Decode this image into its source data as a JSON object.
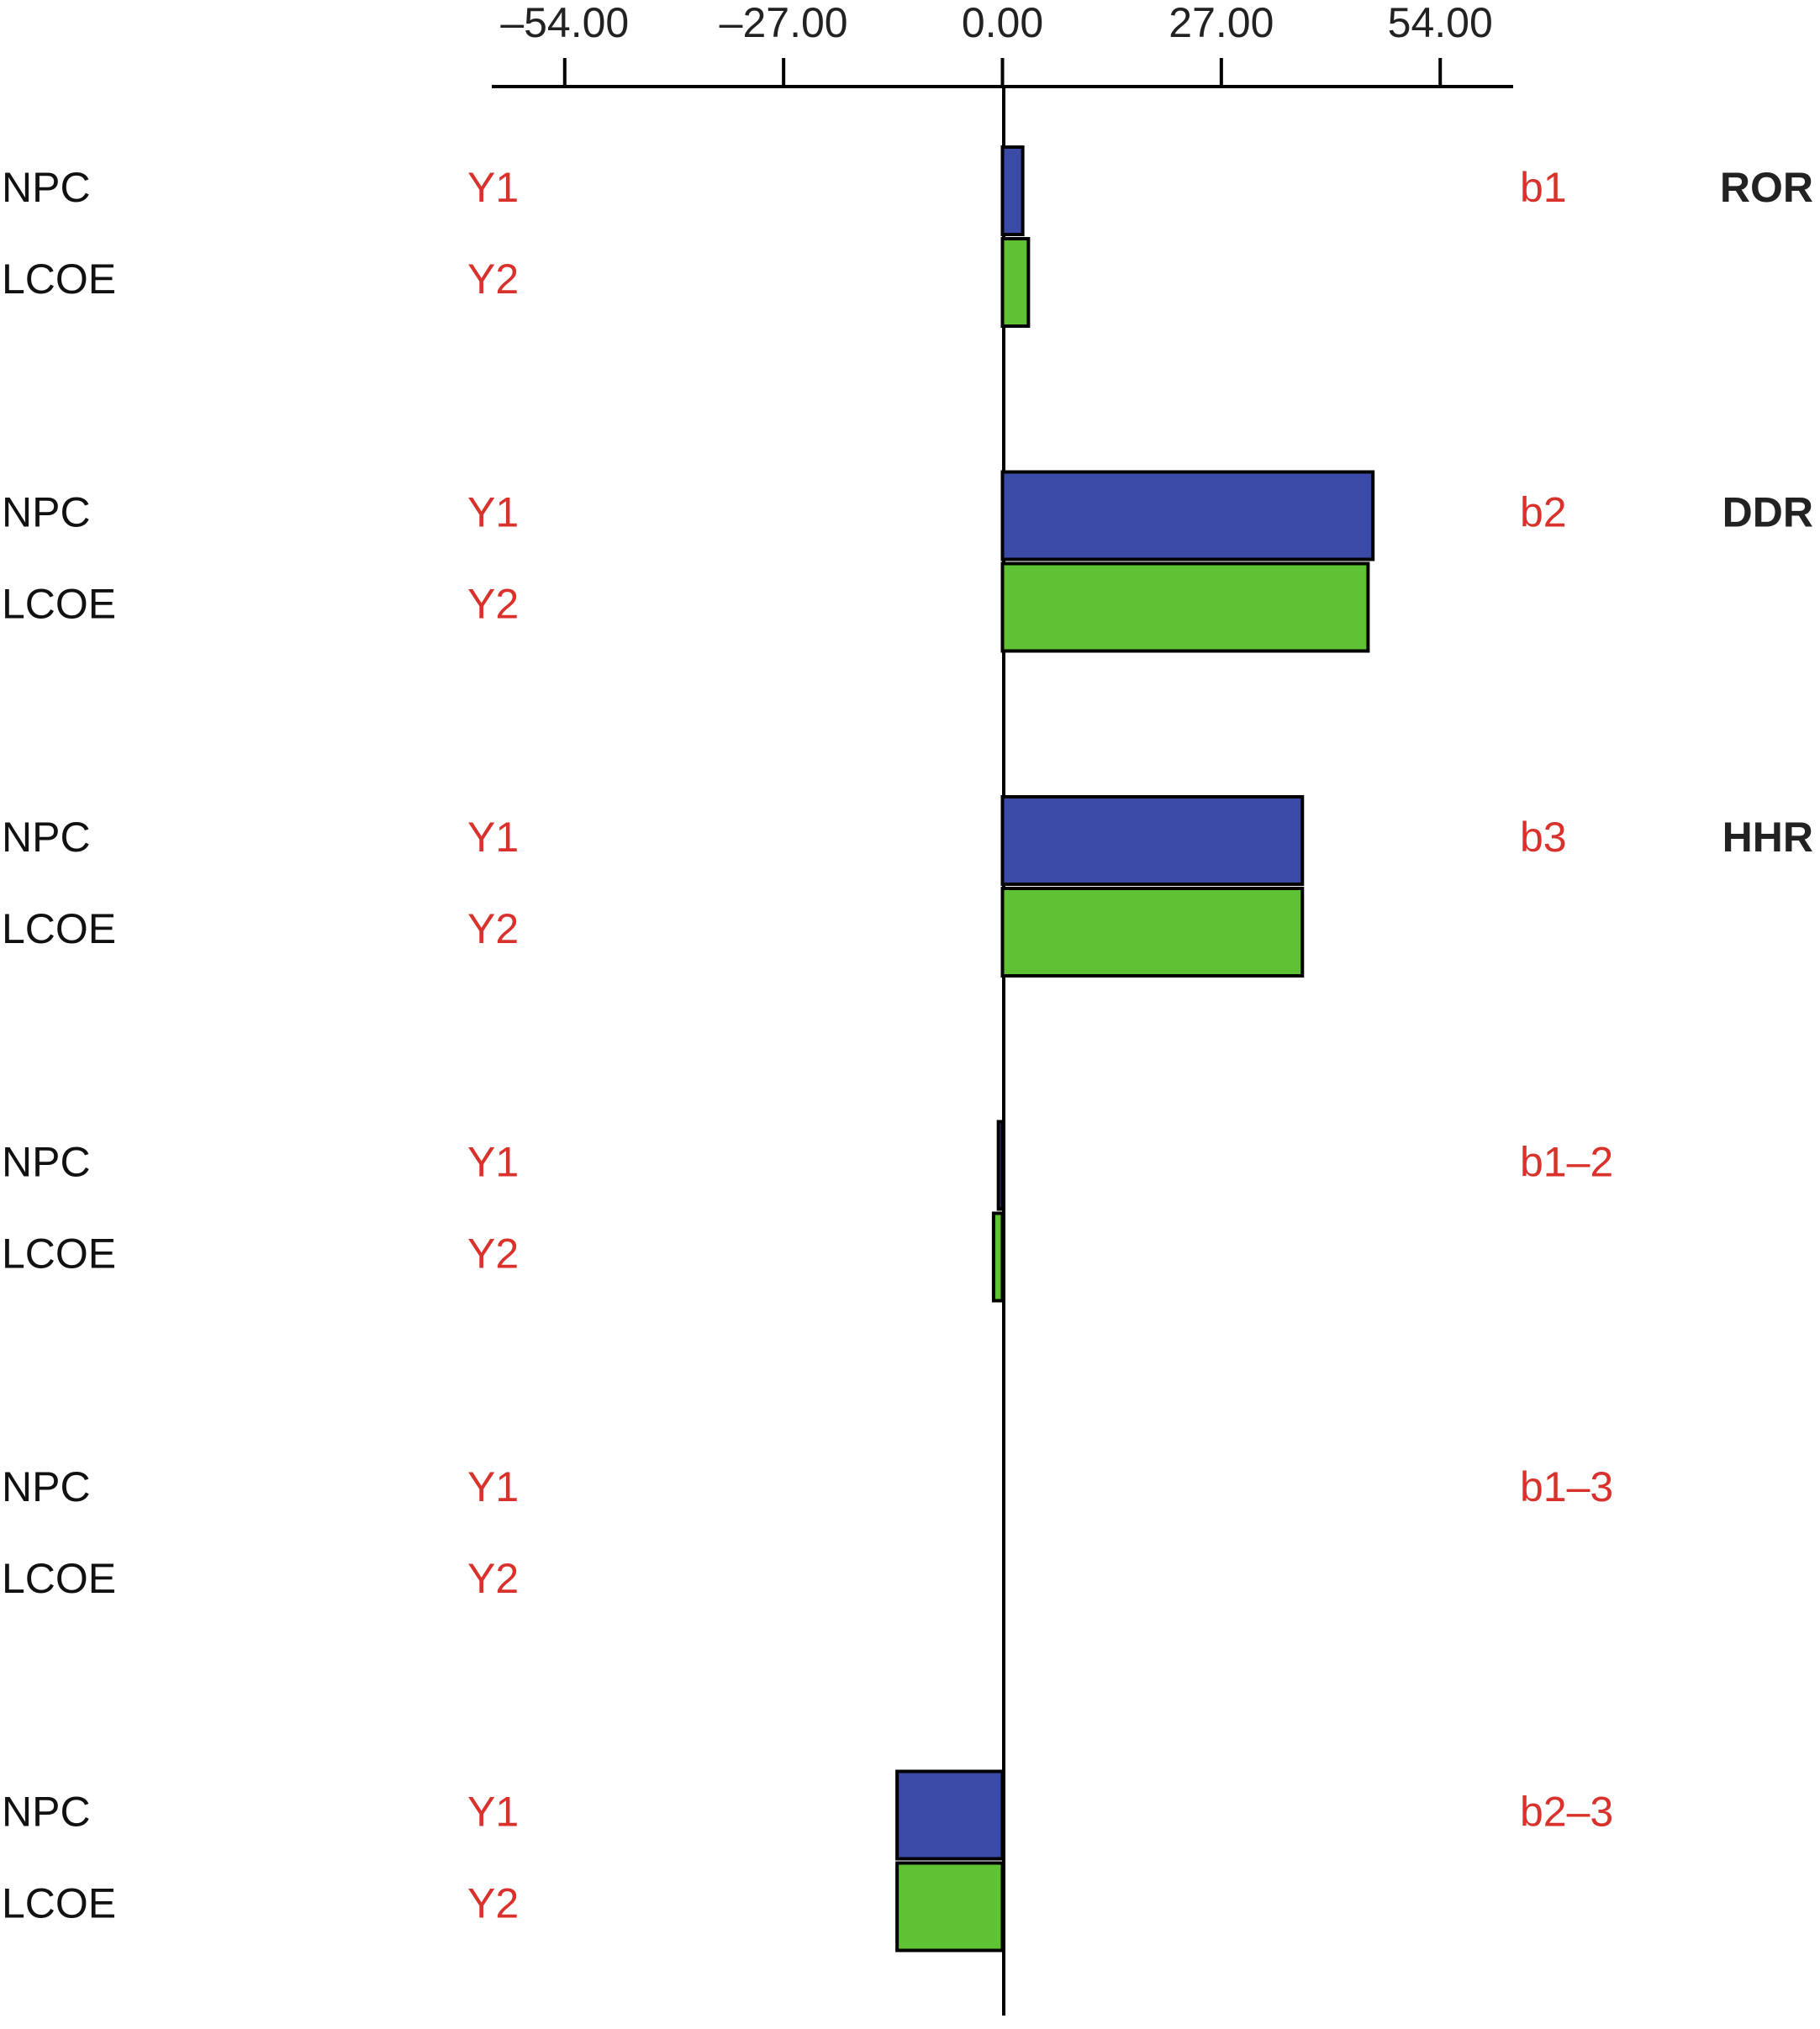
{
  "chart_data": {
    "type": "bar",
    "orientation": "horizontal",
    "categories": [
      "b1",
      "b2",
      "b3",
      "b1–2",
      "b1–3",
      "b2–3"
    ],
    "group_titles": [
      "ROR",
      "DDR",
      "HHR",
      null,
      null,
      null
    ],
    "series": [
      {
        "name": "NPC",
        "code": "Y1",
        "color": "#3b4aa6",
        "values": [
          2.5,
          45.7,
          37.0,
          -0.5,
          0,
          -13.0
        ]
      },
      {
        "name": "LCOE",
        "code": "Y2",
        "color": "#5ec234",
        "values": [
          3.2,
          45.1,
          37.0,
          -1.1,
          0,
          -13.0
        ]
      }
    ],
    "xlim": [
      -63,
      63
    ],
    "xticks": [
      {
        "value": -54,
        "label": "–54.00"
      },
      {
        "value": -27,
        "label": "–27.00"
      },
      {
        "value": 0,
        "label": "0.00"
      },
      {
        "value": 27,
        "label": "27.00"
      },
      {
        "value": 54,
        "label": "54.00"
      }
    ]
  }
}
